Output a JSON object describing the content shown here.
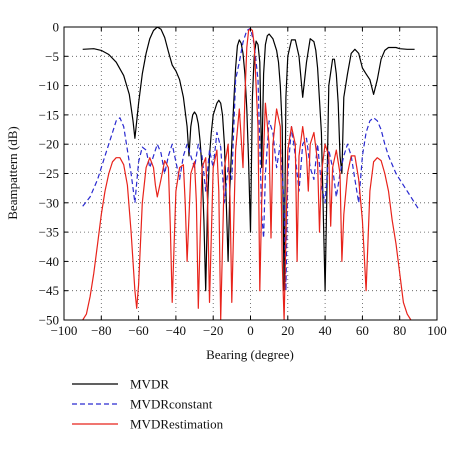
{
  "chart_data": {
    "type": "line",
    "xlabel": "Bearing (degree)",
    "ylabel": "Beampattern (dB)",
    "xlim": [
      -100,
      100
    ],
    "ylim": [
      -50,
      0
    ],
    "xticks": [
      -100,
      -80,
      -60,
      -40,
      -20,
      0,
      20,
      40,
      60,
      80,
      100
    ],
    "yticks": [
      0,
      -5,
      -10,
      -15,
      -20,
      -25,
      -30,
      -35,
      -40,
      -45,
      -50
    ],
    "grid": true,
    "legend_position": "bottom",
    "colors": {
      "MVDR": "#000000",
      "MVDRconstant": "#2a2ad0",
      "MVDRestimation": "#e8231b"
    },
    "series": [
      {
        "name": "MVDR",
        "style": "solid",
        "x": [
          -90,
          -84,
          -80,
          -76,
          -72,
          -68,
          -65,
          -63,
          -62,
          -60,
          -58,
          -56,
          -54,
          -52,
          -50,
          -48,
          -46,
          -44,
          -42,
          -41,
          -40,
          -38,
          -36,
          -34,
          -33,
          -32,
          -31,
          -30,
          -29,
          -28,
          -27,
          -26,
          -25,
          -24,
          -23,
          -22,
          -21,
          -20,
          -19,
          -18,
          -17,
          -16,
          -15,
          -14,
          -13,
          -12,
          -11,
          -10,
          -9,
          -8,
          -7,
          -6,
          -5,
          -4,
          -3,
          -2,
          -1,
          0,
          1,
          2,
          3,
          4,
          5,
          6,
          7,
          8,
          9,
          10,
          12,
          14,
          15,
          16,
          17,
          18,
          19,
          20,
          22,
          24,
          26,
          28,
          30,
          32,
          34,
          35,
          36,
          38,
          40,
          42,
          44,
          45,
          46,
          47,
          48,
          49,
          50,
          52,
          54,
          56,
          58,
          60,
          62,
          64,
          66,
          68,
          70,
          72,
          74,
          76,
          78,
          80,
          84,
          88
        ],
        "y": [
          -3.8,
          -3.7,
          -4,
          -4.7,
          -6,
          -8.3,
          -11.5,
          -16,
          -19,
          -13,
          -8,
          -4.5,
          -2,
          -0.6,
          0,
          -0.4,
          -1.8,
          -4.2,
          -6.5,
          -7,
          -7.5,
          -9,
          -12,
          -17,
          -22,
          -17,
          -15,
          -14.5,
          -15,
          -16.5,
          -19.5,
          -24,
          -33,
          -45,
          -30,
          -22,
          -18,
          -15,
          -14,
          -13,
          -12.5,
          -13,
          -15,
          -20,
          -30,
          -40,
          -27,
          -20,
          -13,
          -7,
          -3.2,
          -2.2,
          -2.8,
          -4.5,
          -8,
          -14,
          -23,
          -35,
          -12,
          -5,
          -2.4,
          -3,
          -6,
          -24,
          -8,
          -3,
          -1.5,
          -1.2,
          -2,
          -4,
          -6,
          -10,
          -17,
          -45,
          -12,
          -5,
          -2.2,
          -2.2,
          -5,
          -12,
          -6,
          -2,
          -2.5,
          -4,
          -7,
          -18,
          -45,
          -10,
          -5.5,
          -5.5,
          -8,
          -13,
          -22,
          -25,
          -12,
          -8,
          -4.5,
          -3.8,
          -4.5,
          -7,
          -8,
          -9,
          -11.5,
          -9,
          -5.5,
          -4,
          -3.5,
          -3.5,
          -3.5,
          -3.7,
          -3.8,
          -3.8
        ]
      },
      {
        "name": "MVDRconstant",
        "style": "dashed",
        "x": [
          -90,
          -86,
          -82,
          -78,
          -74,
          -72,
          -70,
          -68,
          -66,
          -64,
          -62,
          -60,
          -58,
          -56,
          -54,
          -52,
          -50,
          -48,
          -46,
          -44,
          -42,
          -40,
          -38,
          -36,
          -34,
          -32,
          -30,
          -28,
          -26,
          -24,
          -22,
          -20,
          -18,
          -16,
          -14,
          -12,
          -10,
          -8,
          -6,
          -4,
          -2,
          0,
          2,
          4,
          6,
          7,
          8,
          10,
          12,
          14,
          16,
          18,
          19,
          20,
          22,
          24,
          26,
          28,
          30,
          32,
          34,
          36,
          38,
          40,
          42,
          44,
          46,
          48,
          50,
          52,
          54,
          56,
          58,
          60,
          62,
          64,
          66,
          68,
          70,
          72,
          74,
          78,
          82,
          86,
          90
        ],
        "y": [
          -30.6,
          -29,
          -26,
          -22,
          -18,
          -16,
          -15.5,
          -17,
          -21,
          -25,
          -30,
          -23,
          -20.5,
          -21,
          -24,
          -22,
          -20,
          -21.5,
          -25,
          -22,
          -20,
          -23,
          -26,
          -22,
          -20,
          -22,
          -24,
          -20,
          -22,
          -28,
          -21,
          -24,
          -18,
          -20.5,
          -30,
          -24,
          -26,
          -9,
          -6,
          -2.6,
          -0.6,
          -0.2,
          -3,
          -9,
          -32,
          -36,
          -25,
          -16,
          -18,
          -24,
          -20,
          -30,
          -45,
          -25,
          -17,
          -22,
          -28,
          -20,
          -19,
          -24,
          -26,
          -20,
          -27,
          -30,
          -21,
          -24,
          -29,
          -25,
          -22,
          -20,
          -22,
          -26,
          -30,
          -22,
          -18,
          -16,
          -15.5,
          -16,
          -17.5,
          -20,
          -22,
          -25,
          -27,
          -29,
          -31
        ]
      },
      {
        "name": "MVDRestimation",
        "style": "solid",
        "x": [
          -90,
          -88,
          -86,
          -84,
          -82,
          -80,
          -78,
          -76,
          -74,
          -72,
          -70,
          -68,
          -66,
          -64,
          -62,
          -61,
          -60,
          -58,
          -56,
          -54,
          -52,
          -51,
          -50,
          -48,
          -46,
          -44,
          -43,
          -42,
          -40,
          -38,
          -36,
          -35,
          -34,
          -32,
          -30,
          -29,
          -28,
          -26,
          -24,
          -23,
          -22,
          -20,
          -18,
          -17,
          -16,
          -14,
          -12,
          -11,
          -10,
          -8,
          -6,
          -5,
          -4,
          -3,
          -2,
          -1,
          0,
          1,
          2,
          3,
          4,
          5,
          6,
          8,
          10,
          11,
          12,
          14,
          16,
          17,
          18,
          20,
          22,
          24,
          25,
          26,
          28,
          30,
          31,
          32,
          34,
          36,
          37,
          38,
          40,
          42,
          43,
          44,
          46,
          48,
          49,
          50,
          52,
          54,
          56,
          58,
          60,
          62,
          64,
          66,
          68,
          70,
          72,
          74,
          76,
          78,
          80,
          82,
          84,
          86
        ],
        "y": [
          -50,
          -49,
          -46,
          -42,
          -37,
          -32,
          -28,
          -25,
          -23,
          -22.3,
          -22.3,
          -23.5,
          -27,
          -35,
          -45,
          -48,
          -44,
          -30,
          -24,
          -22.3,
          -24,
          -27,
          -29,
          -26,
          -22.8,
          -24,
          -34,
          -47,
          -28,
          -24,
          -23.5,
          -30,
          -40,
          -25,
          -23,
          -30,
          -48,
          -24,
          -22.3,
          -30,
          -47,
          -24,
          -21,
          -28,
          -50,
          -24,
          -20,
          -29,
          -47,
          -21,
          -14,
          -19,
          -24,
          -12,
          -3.5,
          -0.6,
          -0.3,
          -0.6,
          -3,
          -10,
          -17,
          -45,
          -30,
          -13,
          -20,
          -36,
          -20,
          -14,
          -17,
          -40,
          -50,
          -21,
          -17,
          -20,
          -40,
          -22,
          -17,
          -22,
          -28,
          -20,
          -18,
          -23,
          -35,
          -25,
          -20,
          -22,
          -34,
          -24,
          -21,
          -25,
          -40,
          -32,
          -25,
          -22,
          -22,
          -26,
          -33,
          -45,
          -28,
          -23,
          -22.3,
          -22.8,
          -25,
          -28,
          -33,
          -37,
          -42,
          -47,
          -49,
          -50
        ]
      }
    ]
  }
}
